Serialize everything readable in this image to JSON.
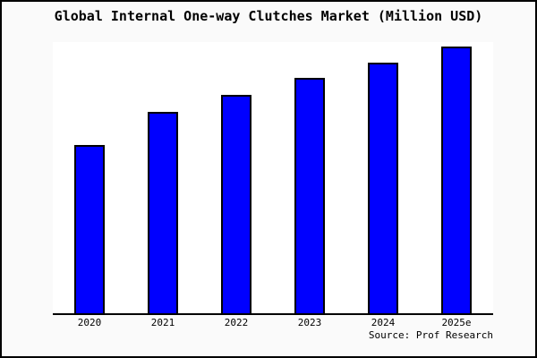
{
  "title": "Global Internal One-way Clutches Market (Million USD)",
  "source_label": "Source: Prof Research",
  "colors": {
    "bar_fill": "#0000ff",
    "bar_border": "#000000",
    "canvas_background": "#fafafa",
    "plot_background": "#ffffff",
    "axis_line": "#000000",
    "text": "#000000"
  },
  "chart_data": {
    "type": "bar",
    "title": "Global Internal One-way Clutches Market (Million USD)",
    "categories": [
      "2020",
      "2021",
      "2022",
      "2023",
      "2024",
      "2025e"
    ],
    "values": [
      188,
      225,
      244,
      263,
      280,
      298
    ],
    "value_note": "estimated relative bar heights; chart displays no y-axis scale or data labels",
    "xlabel": "",
    "ylabel": "",
    "ylim": [
      0,
      303
    ],
    "grid": false,
    "legend": false,
    "y_axis_shown": false,
    "bar_color": "#0000ff",
    "source": "Source: Prof Research"
  }
}
